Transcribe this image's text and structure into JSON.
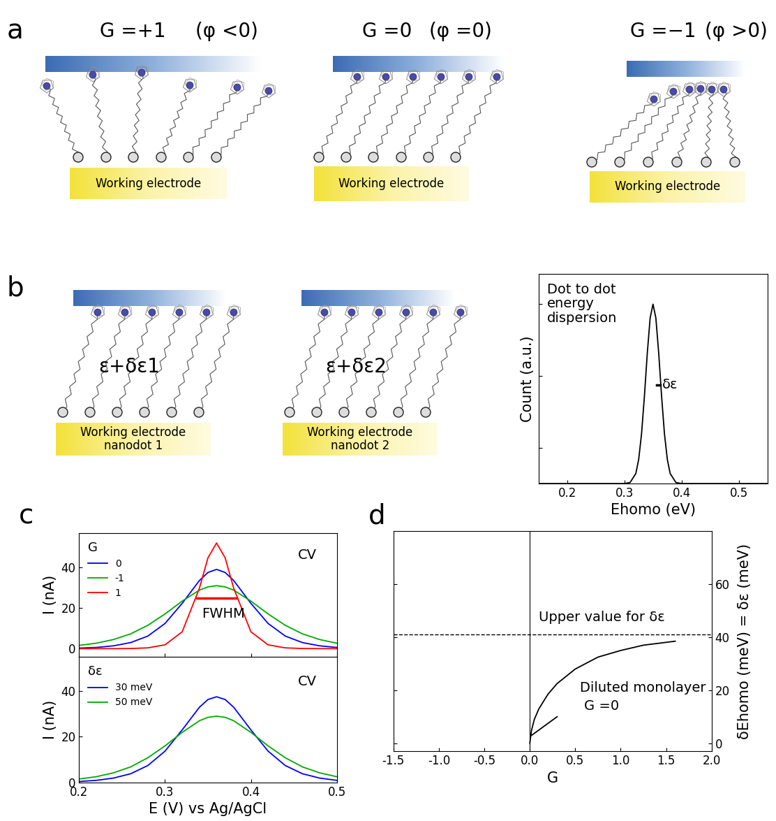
{
  "panel_labels": [
    "a",
    "b",
    "c",
    "d"
  ],
  "diagrams": {
    "a": [
      {
        "title": "G =+1",
        "condition": "(φ <0)",
        "electrode": "Working electrode"
      },
      {
        "title": "G =0",
        "condition": "(φ =0)",
        "electrode": "Working electrode"
      },
      {
        "title": "G =−1",
        "condition": "(φ >0)",
        "electrode": "Working electrode"
      }
    ],
    "b": [
      {
        "energy": "ε+δε1",
        "electrode": "Working electrode\nnanodot 1"
      },
      {
        "energy": "ε+δε2",
        "electrode": "Working electrode\nnanodot 2"
      }
    ]
  },
  "chart_data": [
    {
      "type": "line",
      "x_label": "Ehomo (eV)",
      "y_label": "Count (a.u.)",
      "xlim": [
        0.15,
        0.55
      ],
      "xticks": [
        0.2,
        0.3,
        0.4,
        0.5
      ],
      "ylim": [
        0,
        1.167
      ],
      "yticks": [
        0.2,
        0.6,
        1.0
      ],
      "tick_labels": "x",
      "series": [
        {
          "color": "#000000",
          "x": [
            0.15,
            0.3,
            0.31,
            0.32,
            0.325,
            0.33,
            0.335,
            0.34,
            0.345,
            0.35,
            0.355,
            0.36,
            0.365,
            0.37,
            0.375,
            0.38,
            0.39,
            0.4,
            0.55
          ],
          "values": [
            0,
            0,
            0.006,
            0.056,
            0.135,
            0.278,
            0.487,
            0.726,
            0.923,
            1.0,
            0.923,
            0.726,
            0.487,
            0.278,
            0.135,
            0.056,
            0.006,
            0,
            0
          ]
        }
      ],
      "segments": [
        {
          "x": [
            0.356,
            0.362
          ],
          "y": [
            0.55,
            0.55
          ],
          "color": "#000000"
        }
      ],
      "annotations": [
        {
          "text": "Dot to dot\nenergy\ndispersion",
          "x": 0.165,
          "y": 1.12
        },
        {
          "text": "δε",
          "x": 0.366,
          "y": 0.55
        }
      ]
    },
    {
      "type": "line",
      "y_label": "I (nA)",
      "xlim": [
        0.2,
        0.5
      ],
      "xticks": [
        0.2,
        0.3,
        0.4,
        0.5
      ],
      "ylim": [
        -4,
        57
      ],
      "yticks": [
        0,
        20,
        40
      ],
      "tick_labels": "y",
      "legend": "upper left",
      "legend_title": "G",
      "x": [
        0.2,
        0.22,
        0.24,
        0.26,
        0.28,
        0.3,
        0.32,
        0.34,
        0.35,
        0.36,
        0.37,
        0.38,
        0.4,
        0.42,
        0.44,
        0.46,
        0.48,
        0.5
      ],
      "series": [
        {
          "name": "0",
          "color": "#0000ff",
          "values": [
            0.3,
            0.6,
            1.4,
            3.0,
            6.2,
            12.4,
            22.3,
            33.5,
            37.5,
            39,
            37.5,
            33.5,
            22.3,
            12.4,
            6.2,
            3.0,
            1.4,
            0.6
          ]
        },
        {
          "name": "-1",
          "color": "#00aa00",
          "values": [
            1.6,
            2.7,
            4.5,
            7.3,
            11.5,
            17.1,
            23.4,
            28.8,
            30.4,
            31,
            30.4,
            28.8,
            23.4,
            17.1,
            11.5,
            7.3,
            4.5,
            2.7
          ]
        },
        {
          "name": "1",
          "color": "#ff0000",
          "values": [
            0,
            0,
            0.02,
            0.08,
            0.4,
            1.9,
            8.3,
            29.7,
            44.7,
            52,
            44.7,
            29.7,
            8.3,
            1.9,
            0.4,
            0.08,
            0.02,
            0
          ]
        }
      ],
      "segments": [
        {
          "x": [
            0.337,
            0.383
          ],
          "y": [
            25,
            25
          ],
          "color": "#ff0000"
        }
      ],
      "annotations": [
        {
          "text": "CV",
          "x": 0.455,
          "y": 46
        },
        {
          "text": "FWHM",
          "x": 0.343,
          "y": 17
        }
      ]
    },
    {
      "type": "line",
      "x_label": "E (V) vs Ag/AgCl",
      "y_label": "I (nA)",
      "xlim": [
        0.2,
        0.5
      ],
      "xticks": [
        0.2,
        0.3,
        0.4,
        0.5
      ],
      "ylim": [
        0,
        55
      ],
      "yticks": [
        0,
        20,
        40
      ],
      "legend": "upper left",
      "legend_title": "δε",
      "x": [
        0.2,
        0.22,
        0.24,
        0.26,
        0.28,
        0.3,
        0.32,
        0.34,
        0.35,
        0.36,
        0.37,
        0.38,
        0.4,
        0.42,
        0.44,
        0.46,
        0.48,
        0.5
      ],
      "series": [
        {
          "name": "30 meV",
          "color": "#0000ff",
          "values": [
            0.4,
            0.9,
            1.9,
            3.8,
            7.4,
            13.7,
            23.0,
            32.9,
            36.3,
            37.5,
            36.3,
            32.9,
            23.0,
            13.7,
            7.4,
            3.8,
            1.9,
            0.9
          ]
        },
        {
          "name": "50 meV",
          "color": "#00aa00",
          "values": [
            1.5,
            2.5,
            4.2,
            6.8,
            10.8,
            16.0,
            21.9,
            27.0,
            28.5,
            29,
            28.5,
            27.0,
            21.9,
            16.0,
            10.8,
            6.8,
            4.2,
            2.5
          ]
        }
      ],
      "annotations": [
        {
          "text": "CV",
          "x": 0.455,
          "y": 44
        }
      ]
    },
    {
      "type": "line",
      "x_label": "G",
      "y_label": "δEhomo (meV) = δε (meV)",
      "xlim": [
        -1.5,
        2.0
      ],
      "xticks": [
        -1.5,
        -1.0,
        -0.5,
        0.0,
        0.5,
        1.0,
        1.5,
        2.0
      ],
      "ylim": [
        -3,
        80
      ],
      "yticks": [
        0,
        20,
        40,
        60
      ],
      "series": [
        {
          "color": "#000000",
          "x": [
            0,
            0.02,
            0.05,
            0.1,
            0.2,
            0.3,
            0.5,
            0.75,
            1.0,
            1.25,
            1.6
          ],
          "values": [
            0,
            5,
            9,
            13,
            18.5,
            22.5,
            28,
            32.5,
            35,
            37,
            38.5
          ]
        },
        {
          "color": "#000000",
          "x": [
            0.02,
            0.3
          ],
          "values": [
            3,
            10
          ]
        }
      ],
      "vlines": [
        0.0
      ],
      "hlines": [
        {
          "y": 41,
          "line_style": "dashed",
          "color": "#000000"
        }
      ],
      "annotations": [
        {
          "text": "Upper value for δε",
          "x": 0.1,
          "y": 45
        },
        {
          "text": "Diluted monolayer",
          "x": 0.55,
          "y": 21
        },
        {
          "text": "G =0",
          "x": 0.6,
          "y": 14
        }
      ]
    }
  ]
}
